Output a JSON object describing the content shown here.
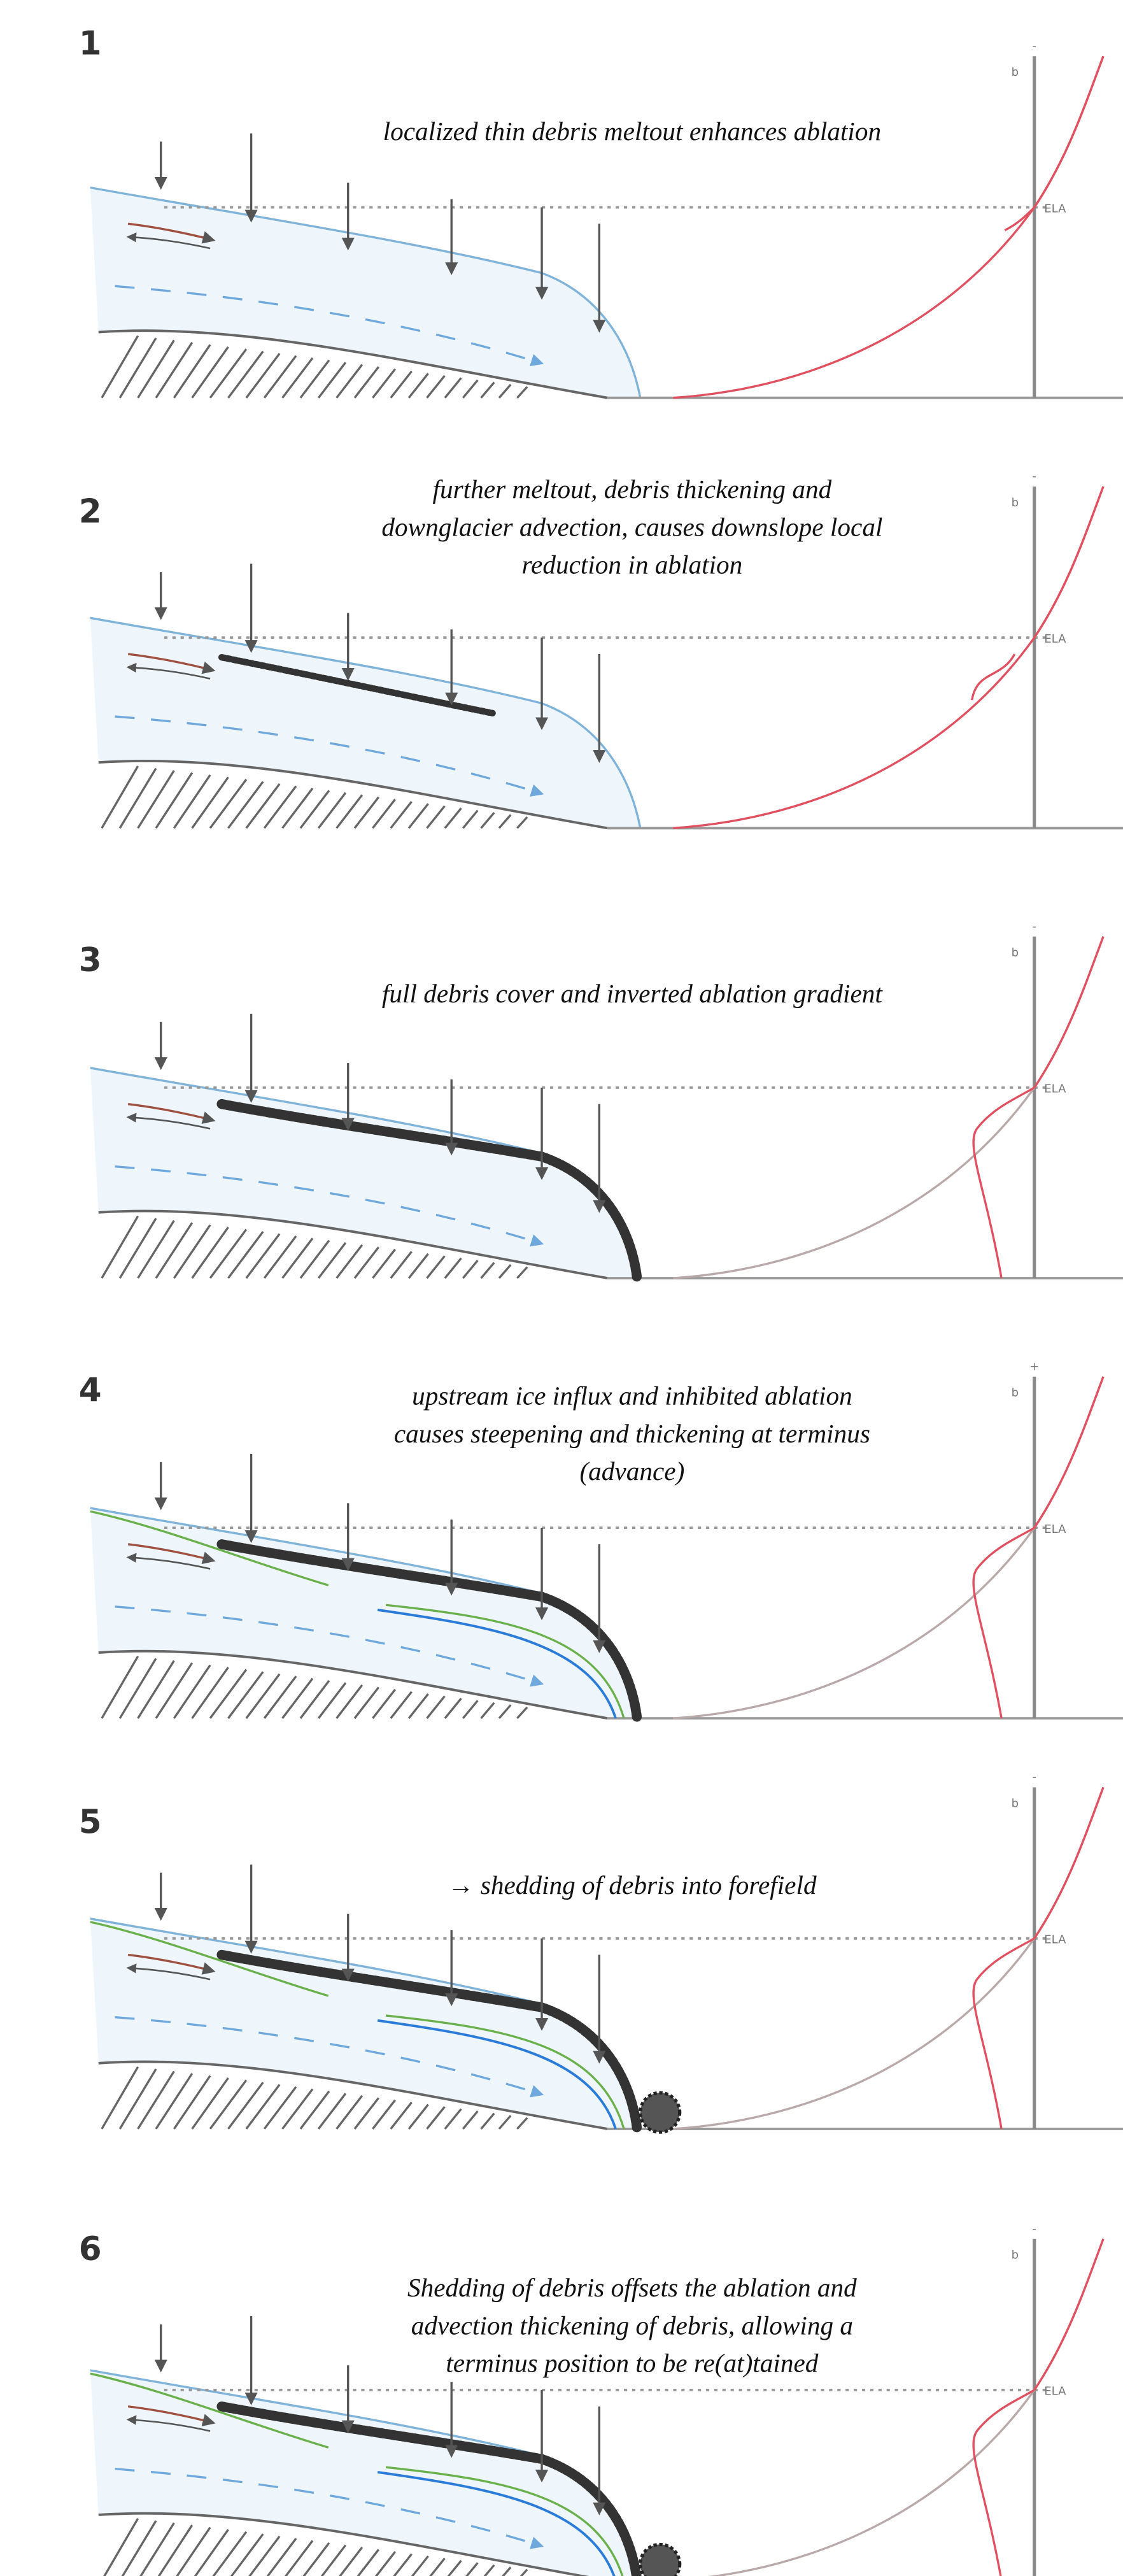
{
  "panels": [
    {
      "number": "1",
      "caption": [
        "localized thin debris meltout enhances ablation"
      ],
      "sign": "-",
      "axis_label": "b",
      "ela_label": "ELA"
    },
    {
      "number": "2",
      "caption": [
        "further meltout, debris thickening and",
        "downglacier advection, causes downslope local",
        "reduction in ablation"
      ],
      "sign": "-",
      "axis_label": "b",
      "ela_label": "ELA"
    },
    {
      "number": "3",
      "caption": [
        "full debris cover and inverted ablation gradient"
      ],
      "sign": "-",
      "axis_label": "b",
      "ela_label": "ELA"
    },
    {
      "number": "4",
      "caption": [
        "upstream ice influx and inhibited ablation",
        "causes steepening and thickening at terminus",
        "(advance)"
      ],
      "sign": "+",
      "axis_label": "b",
      "ela_label": "ELA"
    },
    {
      "number": "5",
      "caption": [
        "→ shedding of debris into forefield"
      ],
      "sign": "-",
      "axis_label": "b",
      "ela_label": "ELA"
    },
    {
      "number": "6",
      "caption": [
        "Shedding of debris offsets the ablation and",
        "advection thickening of debris, allowing a",
        "terminus position to be re(at)tained"
      ],
      "sign": "-",
      "axis_label": "b",
      "ela_label": "ELA"
    }
  ]
}
